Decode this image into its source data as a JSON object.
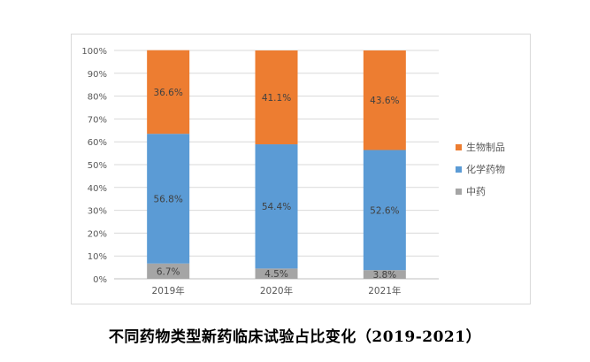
{
  "caption": "不同药物类型新药临床试验占比变化（2019-2021）",
  "chart_data": {
    "type": "bar",
    "stacked": true,
    "categories": [
      "2019年",
      "2020年",
      "2021年"
    ],
    "series": [
      {
        "name": "中药",
        "values": [
          6.7,
          4.5,
          3.8
        ],
        "labels": [
          "6.7%",
          "4.5%",
          "3.8%"
        ],
        "color": "#a5a5a5"
      },
      {
        "name": "化学药物",
        "values": [
          56.8,
          54.4,
          52.6
        ],
        "labels": [
          "56.8%",
          "54.4%",
          "52.6%"
        ],
        "color": "#5b9bd5"
      },
      {
        "name": "生物制品",
        "values": [
          36.6,
          41.1,
          43.6
        ],
        "labels": [
          "36.6%",
          "41.1%",
          "43.6%"
        ],
        "color": "#ed7d31"
      }
    ],
    "ylim": [
      0,
      100
    ],
    "yticks": [
      "0%",
      "10%",
      "20%",
      "30%",
      "40%",
      "50%",
      "60%",
      "70%",
      "80%",
      "90%",
      "100%"
    ],
    "grid": true,
    "legend_position": "right",
    "legend_order": [
      "生物制品",
      "化学药物",
      "中药"
    ]
  }
}
